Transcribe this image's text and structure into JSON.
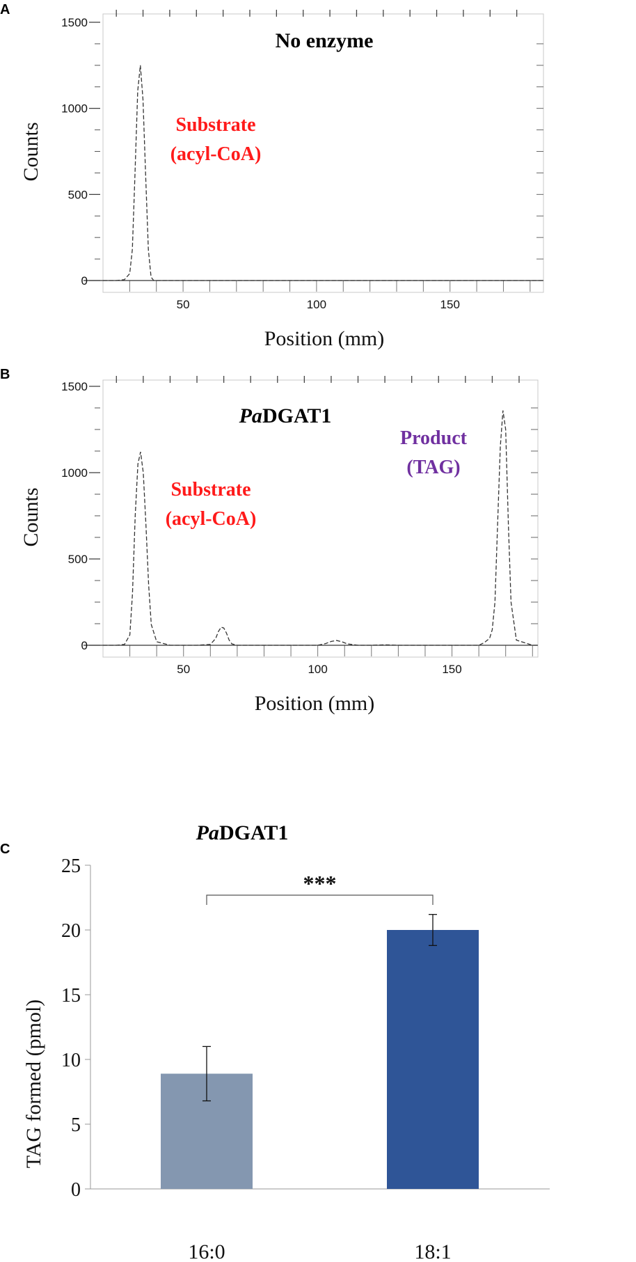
{
  "panels": {
    "a": {
      "letter": "A",
      "title": "No enzyme",
      "substrate_label_1": "Substrate",
      "substrate_label_2": "(acyl-CoA)"
    },
    "b": {
      "letter": "B",
      "title_italic": "Pa",
      "title_rest": "DGAT1",
      "substrate_label_1": "Substrate",
      "substrate_label_2": "(acyl-CoA)",
      "product_label_1": "Product",
      "product_label_2": "(TAG)"
    },
    "c": {
      "letter": "C",
      "title_italic": "Pa",
      "title_rest": "DGAT1",
      "significance": "***"
    }
  },
  "colors": {
    "substrate": "#ff1a1a",
    "product": "#7030a0",
    "bar_16_0": "#8497b0",
    "bar_18_1": "#2f5597"
  },
  "chart_data": [
    {
      "type": "line",
      "panel": "A",
      "title": "No enzyme",
      "xlabel": "Position (mm)",
      "ylabel": "Counts",
      "xlim": [
        20,
        185
      ],
      "ylim": [
        0,
        1500
      ],
      "xticks": [
        50,
        100,
        150
      ],
      "yticks": [
        0,
        500,
        1000,
        1500
      ],
      "series": [
        {
          "x": [
            20,
            25,
            28,
            30,
            31,
            32,
            33,
            34,
            35,
            36,
            37,
            38,
            39,
            45,
            60,
            80,
            100,
            120,
            140,
            160,
            180,
            185
          ],
          "y": [
            0,
            0,
            5,
            40,
            180,
            620,
            1100,
            1250,
            1050,
            600,
            180,
            20,
            0,
            0,
            0,
            0,
            0,
            0,
            0,
            0,
            0,
            0
          ]
        }
      ]
    },
    {
      "type": "line",
      "panel": "B",
      "title": "PaDGAT1",
      "xlabel": "Position (mm)",
      "ylabel": "Counts",
      "xlim": [
        20,
        182
      ],
      "ylim": [
        0,
        1500
      ],
      "xticks": [
        50,
        100,
        150
      ],
      "yticks": [
        0,
        500,
        1000,
        1500
      ],
      "series": [
        {
          "x": [
            20,
            25,
            28,
            30,
            31,
            32,
            33,
            34,
            35,
            36,
            37,
            38,
            40,
            45,
            55,
            60,
            62,
            63,
            64,
            65,
            66,
            67,
            68,
            70,
            80,
            100,
            103,
            105,
            107,
            109,
            111,
            115,
            120,
            125,
            130,
            150,
            160,
            162,
            164,
            165,
            166,
            167,
            168,
            169,
            170,
            171,
            172,
            174,
            180,
            182
          ],
          "y": [
            0,
            0,
            5,
            60,
            300,
            750,
            1050,
            1120,
            1000,
            700,
            350,
            120,
            20,
            0,
            0,
            5,
            40,
            80,
            105,
            100,
            70,
            30,
            8,
            0,
            0,
            0,
            10,
            22,
            28,
            20,
            8,
            0,
            0,
            3,
            0,
            0,
            0,
            15,
            40,
            90,
            250,
            700,
            1150,
            1360,
            1250,
            700,
            250,
            30,
            0,
            0
          ]
        }
      ]
    },
    {
      "type": "bar",
      "panel": "C",
      "title": "PaDGAT1",
      "xlabel": "",
      "ylabel": "TAG formed (pmol)",
      "categories": [
        "16:0",
        "18:1"
      ],
      "values": [
        8.9,
        20.0
      ],
      "errors": [
        2.1,
        1.2
      ],
      "ylim": [
        0,
        25
      ],
      "yticks": [
        0,
        5,
        10,
        15,
        20,
        25
      ],
      "significance": "***"
    }
  ]
}
